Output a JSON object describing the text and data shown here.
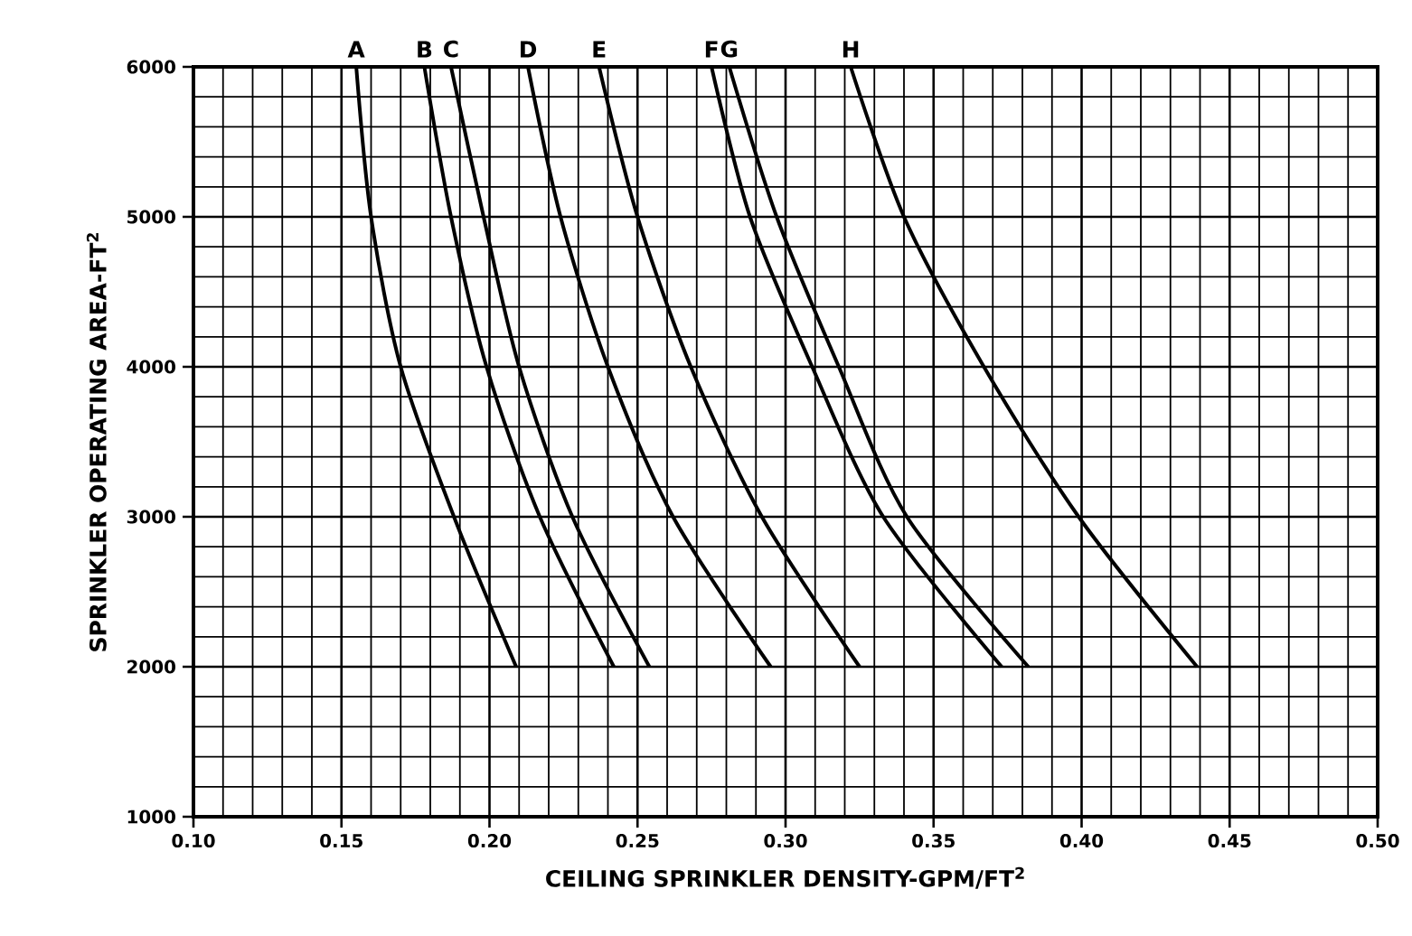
{
  "chart_data": {
    "type": "line",
    "xlabel": "CEILING SPRINKLER DENSITY-GPM/FT$^{2}$",
    "ylabel": "SPRINKLER OPERATING AREA-FT$^{2}$",
    "xlim": [
      0.1,
      0.5
    ],
    "ylim": [
      1000,
      6000
    ],
    "xticks": [
      {
        "value": 0.1,
        "label": "0.10"
      },
      {
        "value": 0.15,
        "label": "0.15"
      },
      {
        "value": 0.2,
        "label": "0.20"
      },
      {
        "value": 0.25,
        "label": "0.25"
      },
      {
        "value": 0.3,
        "label": "0.30"
      },
      {
        "value": 0.35,
        "label": "0.35"
      },
      {
        "value": 0.4,
        "label": "0.40"
      },
      {
        "value": 0.45,
        "label": "0.45"
      },
      {
        "value": 0.5,
        "label": "0.50"
      }
    ],
    "yticks": [
      1000,
      2000,
      3000,
      4000,
      5000,
      6000
    ],
    "grid": true,
    "marker": "none",
    "line_style": "solid",
    "series": [
      {
        "name": "A",
        "color": "#000000",
        "x": [
          0.155,
          0.16,
          0.17,
          0.188,
          0.209
        ],
        "values": [
          6000,
          5000,
          4000,
          3000,
          2000
        ]
      },
      {
        "name": "B",
        "color": "#000000",
        "x": [
          0.178,
          0.187,
          0.199,
          0.217,
          0.242
        ],
        "values": [
          6000,
          5000,
          4000,
          3000,
          2000
        ]
      },
      {
        "name": "C",
        "color": "#000000",
        "x": [
          0.187,
          0.198,
          0.21,
          0.228,
          0.254
        ],
        "values": [
          6000,
          5000,
          4000,
          3000,
          2000
        ]
      },
      {
        "name": "D",
        "color": "#000000",
        "x": [
          0.213,
          0.224,
          0.24,
          0.262,
          0.295
        ],
        "values": [
          6000,
          5000,
          4000,
          3000,
          2000
        ]
      },
      {
        "name": "E",
        "color": "#000000",
        "x": [
          0.237,
          0.25,
          0.268,
          0.292,
          0.325
        ],
        "values": [
          6000,
          5000,
          4000,
          3000,
          2000
        ]
      },
      {
        "name": "F",
        "color": "#000000",
        "x": [
          0.275,
          0.288,
          0.309,
          0.333,
          0.373
        ],
        "values": [
          6000,
          5000,
          4000,
          3000,
          2000
        ]
      },
      {
        "name": "G",
        "color": "#000000",
        "x": [
          0.281,
          0.297,
          0.318,
          0.341,
          0.382
        ],
        "values": [
          6000,
          5000,
          4000,
          3000,
          2000
        ]
      },
      {
        "name": "H",
        "color": "#000000",
        "x": [
          0.322,
          0.34,
          0.367,
          0.399,
          0.439
        ],
        "values": [
          6000,
          5000,
          4000,
          3000,
          2000
        ]
      }
    ]
  }
}
